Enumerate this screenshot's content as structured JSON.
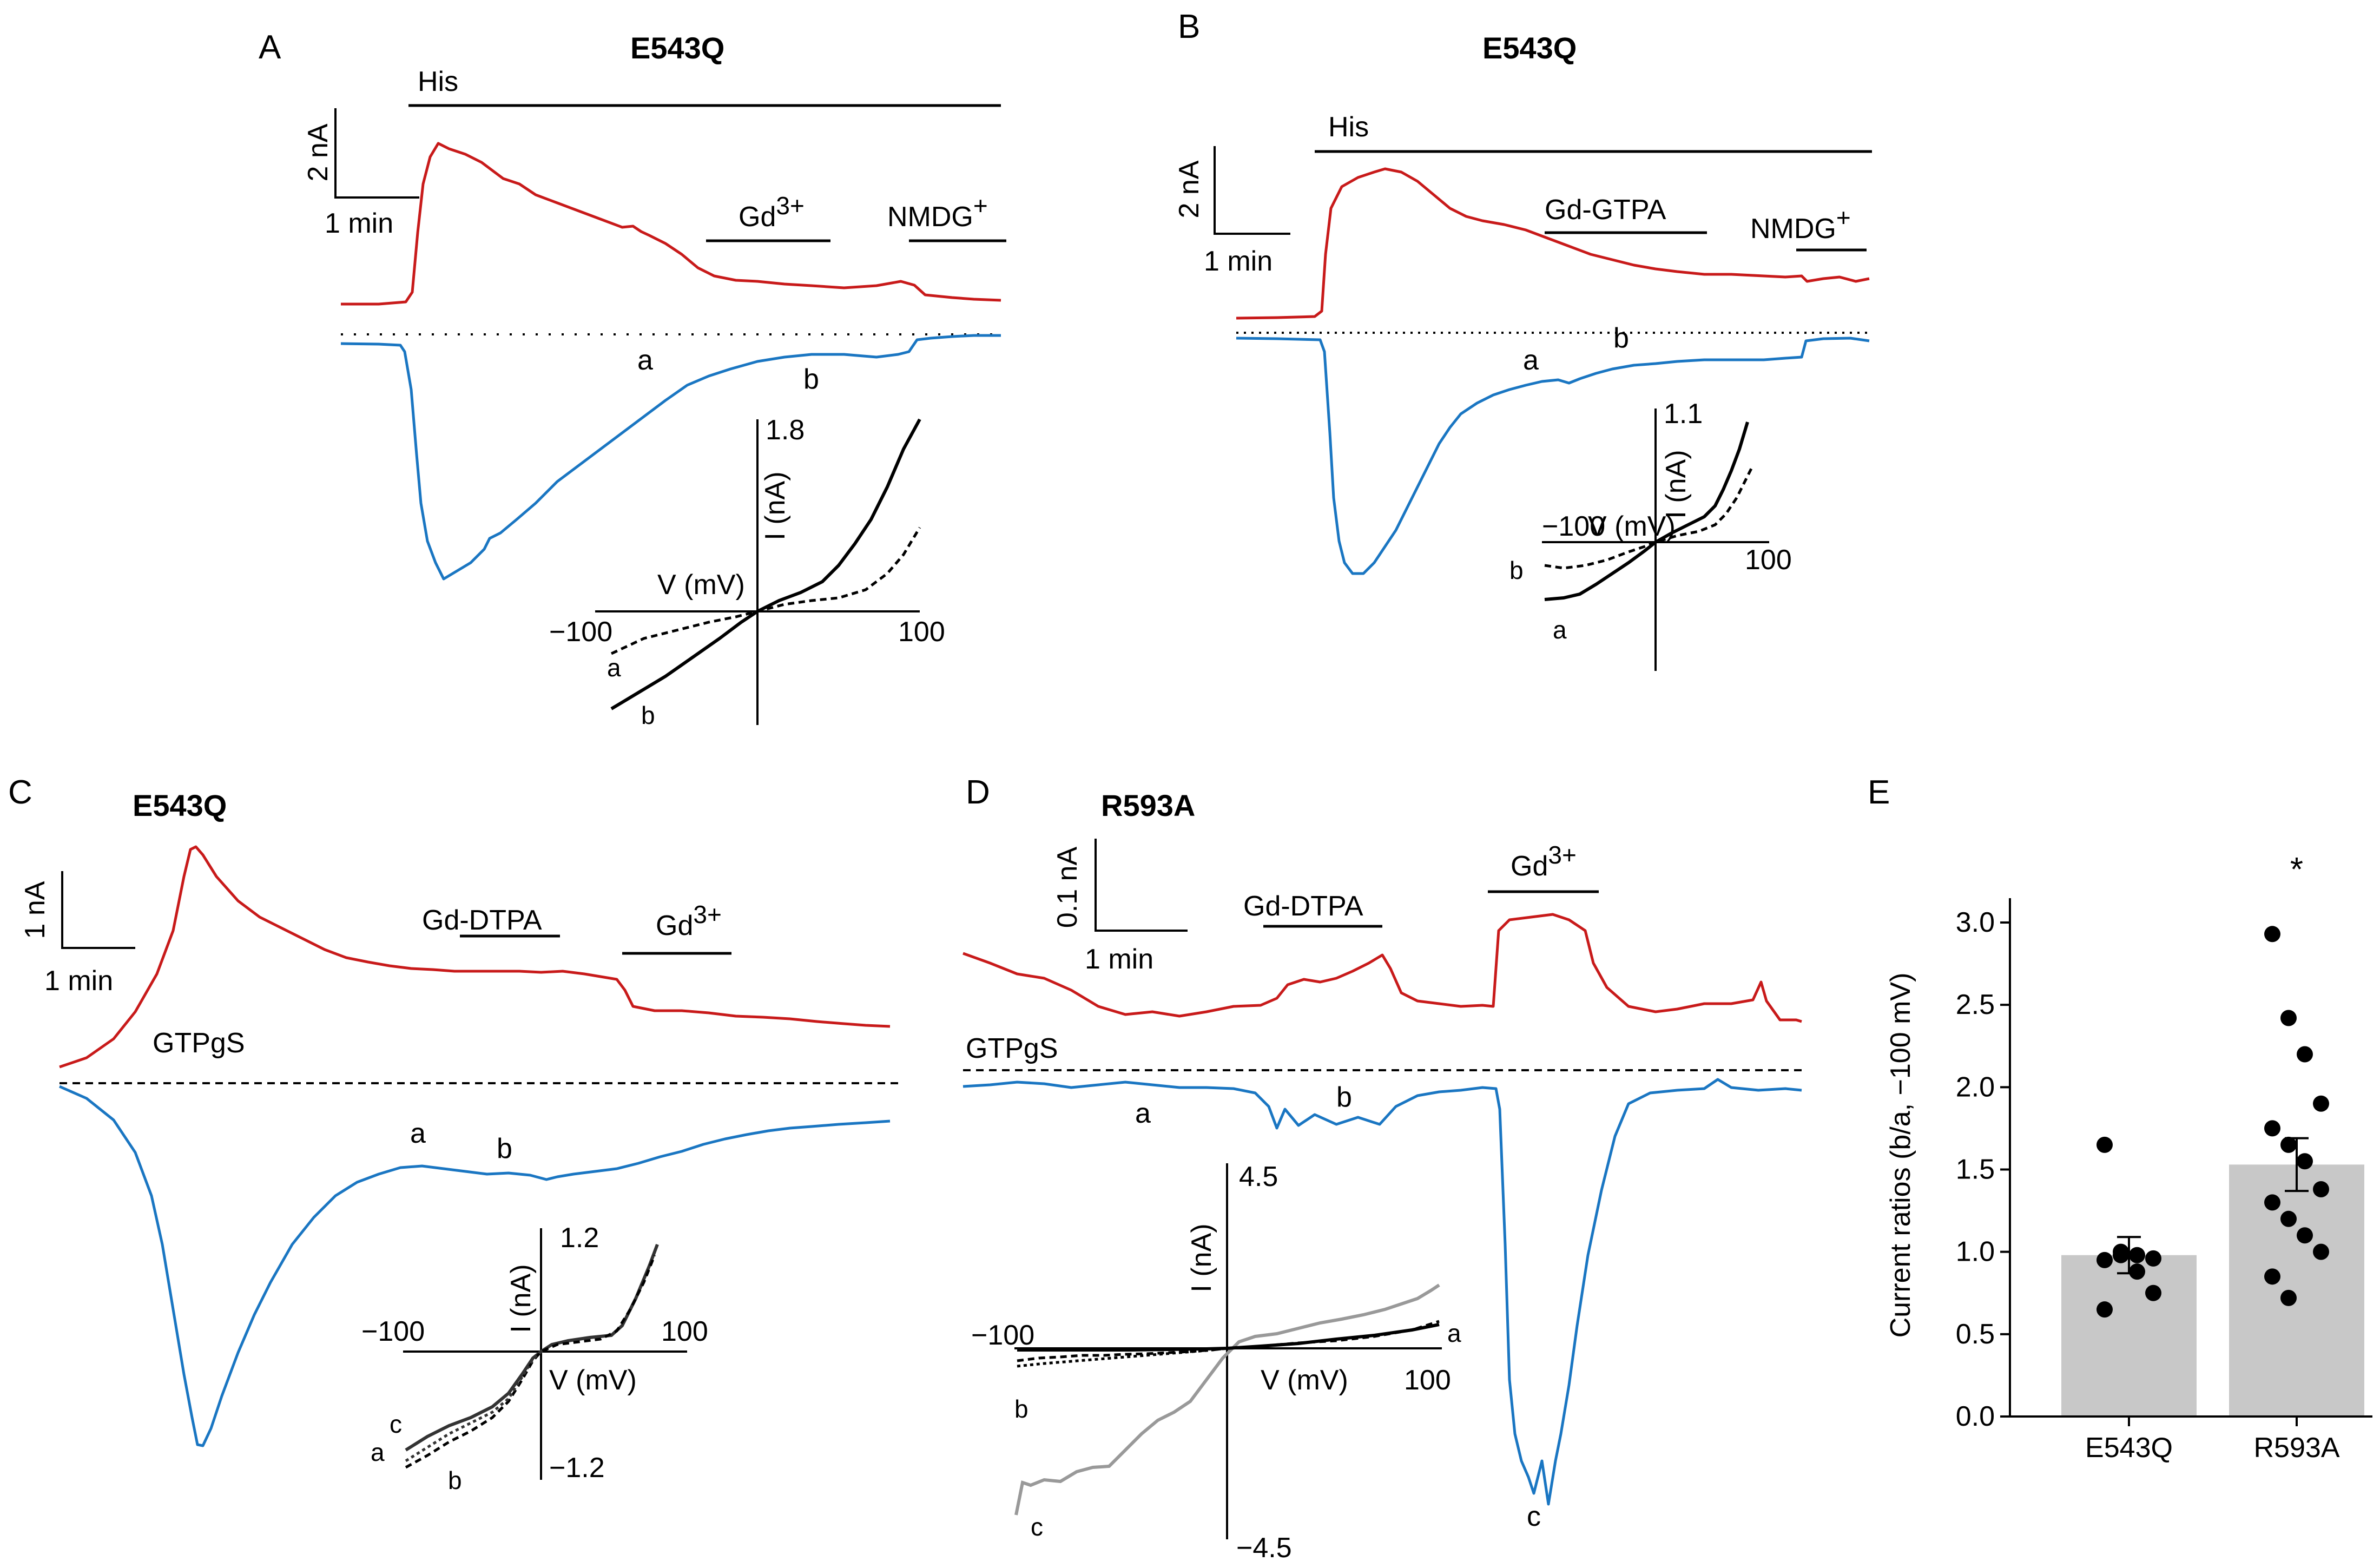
{
  "figure": {
    "panels": {
      "A": {
        "letter": "A",
        "title": "E543Q",
        "agonist": "His",
        "scale_y": "2 nA",
        "scale_x": "1 min",
        "drug1": "Gd",
        "drug1_sup": "3+",
        "drug2": "NMDG",
        "drug2_sup": "+",
        "mark_a": "a",
        "mark_b": "b",
        "iv": {
          "ymax": "1.8",
          "ylabel": "I (nA)",
          "xlabel": "V (mV)",
          "xmin": "−100",
          "xmax": "100",
          "trace_a": "a",
          "trace_b": "b"
        }
      },
      "B": {
        "letter": "B",
        "title": "E543Q",
        "agonist": "His",
        "scale_y": "2 nA",
        "scale_x": "1 min",
        "drug1": "Gd-GTPA",
        "drug2": "NMDG",
        "drug2_sup": "+",
        "mark_a": "a",
        "mark_b": "b",
        "iv": {
          "ymax": "1.1",
          "ylabel": "I (nA)",
          "xlabel": "V (mV)",
          "xmin": "−100",
          "xmax": "100",
          "trace_a": "a",
          "trace_b": "b"
        }
      },
      "C": {
        "letter": "C",
        "title": "E543Q",
        "scale_y": "1 nA",
        "scale_x": "1 min",
        "condition": "GTPgS",
        "drug1": "Gd-DTPA",
        "drug2": "Gd",
        "drug2_sup": "3+",
        "mark_a": "a",
        "mark_b": "b",
        "iv": {
          "ymax": "1.2",
          "ymin": "−1.2",
          "ylabel": "I (nA)",
          "xlabel": "V (mV)",
          "xmin": "−100",
          "xmax": "100",
          "trace_a": "a",
          "trace_b": "b",
          "trace_c": "c"
        }
      },
      "D": {
        "letter": "D",
        "title": "R593A",
        "scale_y": "0.1 nA",
        "scale_x": "1 min",
        "condition": "GTPgS",
        "drug1": "Gd-DTPA",
        "drug2": "Gd",
        "drug2_sup": "3+",
        "mark_a": "a",
        "mark_b": "b",
        "mark_c": "c",
        "iv": {
          "ymax": "4.5",
          "ymin": "−4.5",
          "ylabel": "I (nA)",
          "xlabel": "V (mV)",
          "xmin": "−100",
          "xmax": "100",
          "trace_a": "a",
          "trace_b": "b",
          "trace_c": "c"
        }
      },
      "E": {
        "letter": "E"
      }
    }
  },
  "chart_data": {
    "type": "bar",
    "panel": "E",
    "categories": [
      "E543Q",
      "R593A"
    ],
    "values": [
      0.98,
      1.53
    ],
    "errors": [
      0.11,
      0.16
    ],
    "significance": [
      "",
      "*"
    ],
    "points": [
      [
        1.65,
        0.98,
        0.98,
        0.96,
        0.95,
        1.0,
        0.88,
        0.75,
        0.65
      ],
      [
        2.93,
        2.42,
        2.2,
        1.9,
        1.75,
        1.65,
        1.55,
        1.38,
        1.3,
        1.2,
        1.1,
        1.0,
        0.85,
        0.72
      ]
    ],
    "ylabel": "Current ratios (b/a, −100 mV)",
    "ylim": [
      0,
      3.0
    ],
    "yticks": [
      "0.0",
      "0.5",
      "1.0",
      "1.5",
      "2.0",
      "2.5",
      "3.0"
    ]
  }
}
